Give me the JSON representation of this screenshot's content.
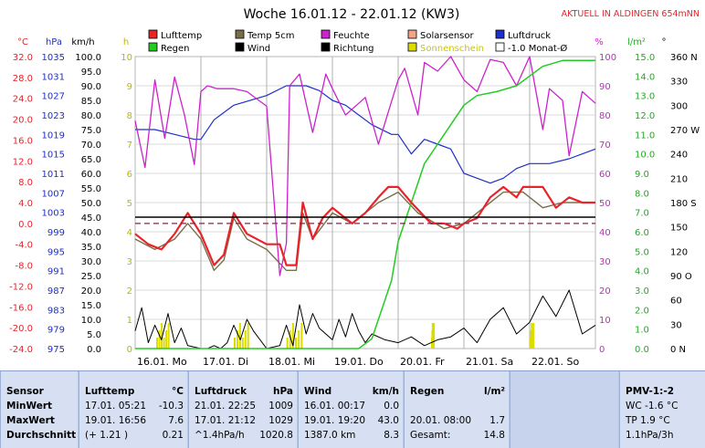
{
  "header": {
    "title": "Woche 16.01.12 - 22.01.12 (KW3)",
    "notice": "AKTUELL IN ALDINGEN 654mNN"
  },
  "legend": [
    {
      "label": "Lufttemp",
      "color": "#e8232a"
    },
    {
      "label": "Temp 5cm",
      "color": "#7a6e4a"
    },
    {
      "label": "Feuchte",
      "color": "#cc22cc"
    },
    {
      "label": "Solarsensor",
      "color": "#f4a486"
    },
    {
      "label": "Luftdruck",
      "color": "#1f2fc8"
    },
    {
      "label": "Regen",
      "color": "#22cc22"
    },
    {
      "label": "Wind",
      "color": "#000000"
    },
    {
      "label": "Richtung",
      "color": "#000000"
    },
    {
      "label": "Sonnenschein",
      "color": "#dcdc00"
    },
    {
      "label": "-1.0 Monat-Ø",
      "color": "#ffffff"
    }
  ],
  "colors": {
    "temp": "#e8232a",
    "pressure": "#1f2fc8",
    "humidity": "#cc22cc",
    "rain": "#22cc22",
    "solar": "#f4a486",
    "soil": "#7a6e4a",
    "sun": "#dcdc00"
  },
  "chart_data": {
    "type": "line",
    "x_labels": [
      "16.01. Mo",
      "17.01. Di",
      "18.01. Mi",
      "19.01. Do",
      "20.01. Fr",
      "21.01. Sa",
      "22.01. So"
    ],
    "axes": {
      "temp": {
        "unit": "°C",
        "ticks": [
          "32.0",
          "28.0",
          "24.0",
          "20.0",
          "16.0",
          "12.0",
          "8.0",
          "4.0",
          "0.0",
          "-4.0",
          "-8.0",
          "-12.0",
          "-16.0",
          "-20.0",
          "-24.0"
        ],
        "ylim": [
          -24,
          32
        ]
      },
      "pressure": {
        "unit": "hPa",
        "ticks": [
          "1035",
          "1031",
          "1027",
          "1023",
          "1019",
          "1015",
          "1011",
          "1007",
          "1003",
          "999",
          "995",
          "991",
          "987",
          "983",
          "979",
          "975"
        ],
        "ylim": [
          975,
          1035
        ]
      },
      "wind": {
        "unit": "km/h",
        "ticks": [
          "100.0",
          "95.0",
          "90.0",
          "85.0",
          "80.0",
          "75.0",
          "70.0",
          "65.0",
          "60.0",
          "55.0",
          "50.0",
          "45.0",
          "40.0",
          "35.0",
          "30.0",
          "25.0",
          "20.0",
          "15.0",
          "10.0",
          "5.0",
          "0.0"
        ],
        "ylim": [
          0,
          100
        ]
      },
      "sun_h": {
        "unit": "h",
        "ticks": [
          "10",
          "9",
          "8",
          "7",
          "6",
          "5",
          "4",
          "3",
          "2",
          "1",
          "0"
        ],
        "ylim": [
          0,
          10
        ]
      },
      "humidity": {
        "unit": "%",
        "ticks": [
          "100",
          "90",
          "80",
          "70",
          "60",
          "50",
          "40",
          "30",
          "20",
          "10",
          "0"
        ],
        "ylim": [
          0,
          100
        ]
      },
      "rain": {
        "unit": "l/m²",
        "ticks": [
          "15.0",
          "14.0",
          "13.0",
          "12.0",
          "11.0",
          "10.0",
          "9.0",
          "8.0",
          "7.0",
          "6.0",
          "5.0",
          "4.0",
          "3.0",
          "2.0",
          "1.0",
          "0.0"
        ],
        "ylim": [
          0,
          15
        ]
      },
      "direction": {
        "unit": "°",
        "ticks": [
          "360 N",
          "330",
          "300",
          "270 W",
          "240",
          "210",
          "180 S",
          "150",
          "120",
          "90 O",
          "60",
          "30",
          "0 N"
        ],
        "ylim": [
          0,
          360
        ]
      }
    },
    "series": [
      {
        "name": "Lufttemp",
        "axis": "temp",
        "x": [
          0,
          0.2,
          0.4,
          0.6,
          0.8,
          1.0,
          1.2,
          1.35,
          1.5,
          1.7,
          2.0,
          2.2,
          2.3,
          2.45,
          2.55,
          2.7,
          2.85,
          3.0,
          3.3,
          3.5,
          3.7,
          3.85,
          4.0,
          4.2,
          4.5,
          4.7,
          4.9,
          5.0,
          5.2,
          5.4,
          5.6,
          5.8,
          5.9,
          6.0,
          6.2,
          6.4,
          6.6,
          6.8,
          7.0
        ],
        "y": [
          -2,
          -4,
          -5,
          -2,
          2,
          -2,
          -8,
          -6,
          2,
          -2,
          -4,
          -4,
          -8,
          -8,
          4,
          -3,
          1,
          3,
          0,
          2,
          5,
          7,
          7,
          4,
          0,
          0,
          -1,
          0,
          1,
          5,
          7,
          5,
          7,
          7,
          7,
          3,
          5,
          4,
          4
        ]
      },
      {
        "name": "Temp 5cm",
        "axis": "temp",
        "x": [
          0,
          0.3,
          0.6,
          0.8,
          1.0,
          1.2,
          1.35,
          1.5,
          1.7,
          2.0,
          2.3,
          2.45,
          2.55,
          2.7,
          3.0,
          3.3,
          3.7,
          4.0,
          4.3,
          4.7,
          5.0,
          5.3,
          5.6,
          5.9,
          6.2,
          6.5,
          7.0
        ],
        "y": [
          -3,
          -5,
          -3,
          0,
          -3,
          -9,
          -7,
          1,
          -3,
          -5,
          -9,
          -9,
          2,
          -3,
          2,
          0,
          4,
          6,
          2,
          -1,
          0,
          3,
          6,
          6,
          3,
          4,
          4
        ]
      },
      {
        "name": "Luftdruck",
        "axis": "pressure",
        "x": [
          0,
          0.3,
          0.6,
          0.9,
          1.0,
          1.2,
          1.5,
          2.0,
          2.3,
          2.6,
          2.8,
          3.0,
          3.2,
          3.6,
          3.9,
          4.0,
          4.2,
          4.4,
          4.6,
          4.8,
          5.0,
          5.2,
          5.4,
          5.6,
          5.8,
          6.0,
          6.3,
          6.6,
          7.0
        ],
        "y": [
          1020,
          1020,
          1019,
          1018,
          1018,
          1022,
          1025,
          1027,
          1029,
          1029,
          1028,
          1026,
          1025,
          1021,
          1019,
          1019,
          1015,
          1018,
          1017,
          1016,
          1011,
          1010,
          1009,
          1010,
          1012,
          1013,
          1013,
          1014,
          1016
        ]
      },
      {
        "name": "Feuchte",
        "axis": "humidity",
        "x": [
          0,
          0.15,
          0.3,
          0.45,
          0.6,
          0.75,
          0.9,
          1.0,
          1.1,
          1.25,
          1.5,
          1.7,
          2.0,
          2.2,
          2.3,
          2.35,
          2.5,
          2.7,
          2.9,
          3.0,
          3.2,
          3.5,
          3.7,
          4.0,
          4.1,
          4.3,
          4.4,
          4.6,
          4.8,
          5.0,
          5.2,
          5.4,
          5.6,
          5.8,
          6.0,
          6.2,
          6.3,
          6.5,
          6.6,
          6.8,
          7.0
        ],
        "y": [
          78,
          62,
          92,
          72,
          93,
          80,
          63,
          88,
          90,
          89,
          89,
          88,
          83,
          25,
          36,
          90,
          94,
          74,
          94,
          89,
          80,
          86,
          70,
          92,
          96,
          80,
          98,
          95,
          100,
          92,
          88,
          99,
          98,
          90,
          100,
          75,
          89,
          85,
          66,
          88,
          84
        ]
      },
      {
        "name": "Wind",
        "axis": "wind",
        "x": [
          0,
          0.1,
          0.2,
          0.3,
          0.4,
          0.5,
          0.6,
          0.7,
          0.8,
          1.0,
          1.1,
          1.2,
          1.3,
          1.4,
          1.5,
          1.6,
          1.7,
          1.8,
          2.0,
          2.2,
          2.3,
          2.4,
          2.5,
          2.6,
          2.7,
          2.8,
          3.0,
          3.1,
          3.2,
          3.3,
          3.4,
          3.5,
          3.6,
          3.8,
          4.0,
          4.2,
          4.4,
          4.6,
          4.8,
          5.0,
          5.2,
          5.4,
          5.6,
          5.8,
          6.0,
          6.2,
          6.4,
          6.6,
          6.8,
          7.0
        ],
        "y": [
          6,
          14,
          2,
          8,
          3,
          12,
          2,
          7,
          1,
          0,
          0,
          1,
          0,
          2,
          8,
          3,
          10,
          6,
          0,
          1,
          8,
          1,
          15,
          5,
          12,
          7,
          3,
          10,
          4,
          12,
          6,
          2,
          5,
          3,
          2,
          4,
          1,
          3,
          4,
          7,
          2,
          10,
          14,
          5,
          9,
          18,
          11,
          20,
          5,
          8
        ]
      },
      {
        "name": "Regen",
        "axis": "rain",
        "x": [
          0,
          3.4,
          3.6,
          3.7,
          3.8,
          3.9,
          4.0,
          4.2,
          4.3,
          4.4,
          4.6,
          4.8,
          5.0,
          5.2,
          5.5,
          5.8,
          6.0,
          6.2,
          6.5,
          7.0
        ],
        "y": [
          0,
          0,
          0.5,
          1.5,
          2.5,
          3.5,
          5.5,
          7.5,
          8.5,
          9.5,
          10.5,
          11.5,
          12.5,
          13.0,
          13.2,
          13.5,
          14.0,
          14.5,
          14.8,
          14.8
        ]
      }
    ],
    "reference_lines": [
      {
        "name": "-1.0 Monat-Ø",
        "axis": "temp",
        "value": 0
      }
    ],
    "extra_lines": [
      {
        "axis": "temp",
        "value": 1.2
      }
    ]
  },
  "stats": {
    "sensor": {
      "title": "Sensor",
      "rows": [
        "MinWert",
        "MaxWert",
        "Durchschnitt"
      ]
    },
    "temp": {
      "title": "Lufttemp",
      "unit": "°C",
      "rows": [
        [
          "17.01.  05:21",
          "-10.3"
        ],
        [
          "19.01.  16:56",
          "7.6"
        ],
        [
          "(+ 1.21 )",
          "0.21"
        ]
      ]
    },
    "pressure": {
      "title": "Luftdruck",
      "unit": "hPa",
      "rows": [
        [
          "21.01.  22:25",
          "1009"
        ],
        [
          "17.01.  21:12",
          "1029"
        ],
        [
          "^1.4hPa/h",
          "1020.8"
        ]
      ]
    },
    "wind": {
      "title": "Wind",
      "unit": "km/h",
      "rows": [
        [
          "16.01.  00:17",
          "0.0"
        ],
        [
          "19.01.  19:20",
          "43.0"
        ],
        [
          "1387.0 km",
          "8.3"
        ]
      ]
    },
    "rain": {
      "title": "Regen",
      "unit": "l/m²",
      "rows": [
        [
          "20.01.  08:00",
          "1.7"
        ],
        [
          "Gesamt:",
          "14.8"
        ]
      ]
    },
    "pmv": {
      "title": "PMV-1:-2",
      "rows": [
        "WC -1.6 °C",
        "TP 1.9 °C",
        "1.1hPa/3h"
      ]
    }
  }
}
